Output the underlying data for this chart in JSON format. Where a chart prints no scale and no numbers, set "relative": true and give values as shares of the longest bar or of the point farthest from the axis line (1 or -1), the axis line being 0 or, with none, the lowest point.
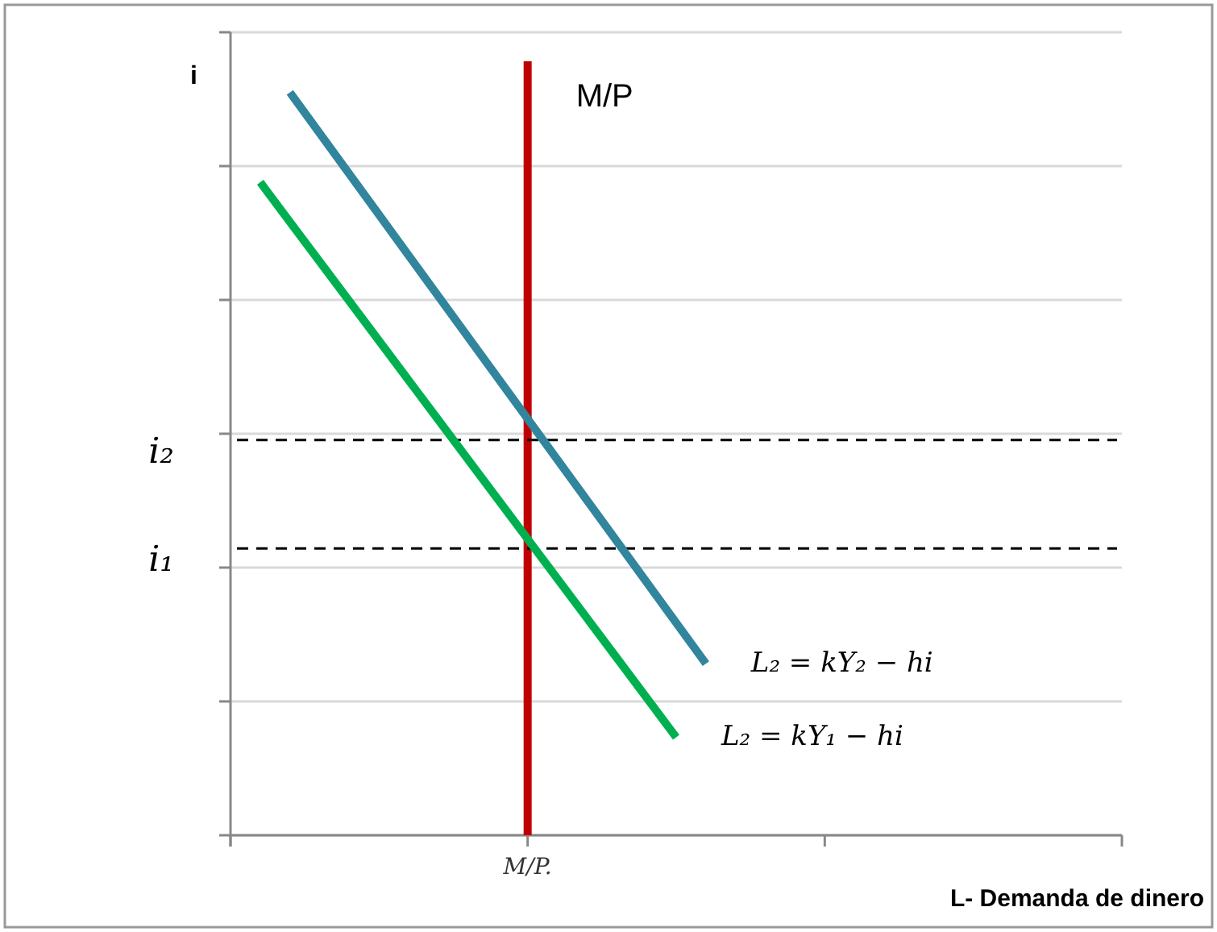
{
  "chart_data": {
    "type": "line",
    "relative": true,
    "xlabel": "L- Demanda de dinero",
    "ylabel": "i",
    "categories": [
      null,
      null,
      null,
      null,
      null,
      null,
      null,
      null,
      null,
      null,
      null,
      null,
      null,
      null,
      null,
      null,
      null,
      null,
      null,
      null,
      null,
      null,
      null,
      null,
      null,
      null,
      null,
      null,
      null,
      null,
      null
    ],
    "grid": "y",
    "legend": false,
    "series": [
      {
        "name": "L₂ = kY₂ − hi",
        "color": "#31859c",
        "values": [
          null,
          null,
          1,
          null,
          null,
          null,
          null,
          null,
          null,
          null,
          null,
          null,
          null,
          null,
          null,
          null,
          0.231,
          null,
          null,
          null,
          null,
          null,
          null,
          null,
          null,
          null,
          null,
          null,
          null,
          null,
          null
        ]
      },
      {
        "name": "L₂ = kY₁ − hi",
        "color": "#00b050",
        "values": [
          null,
          0.879,
          null,
          null,
          null,
          null,
          null,
          null,
          null,
          null,
          null,
          null,
          null,
          null,
          null,
          0.132,
          null,
          null,
          null,
          null,
          null,
          null,
          null,
          null,
          null,
          null,
          null,
          null,
          null,
          null,
          null
        ]
      }
    ],
    "ref_lines": [
      {
        "axis": "y",
        "value": 0.532,
        "label": "i₂",
        "color": "#000000",
        "line_style": "dashed"
      },
      {
        "axis": "y",
        "value": 0.386,
        "label": "i₁",
        "color": "#000000",
        "line_style": "dashed"
      }
    ],
    "annotations": [
      "M/P",
      "M/P."
    ]
  }
}
